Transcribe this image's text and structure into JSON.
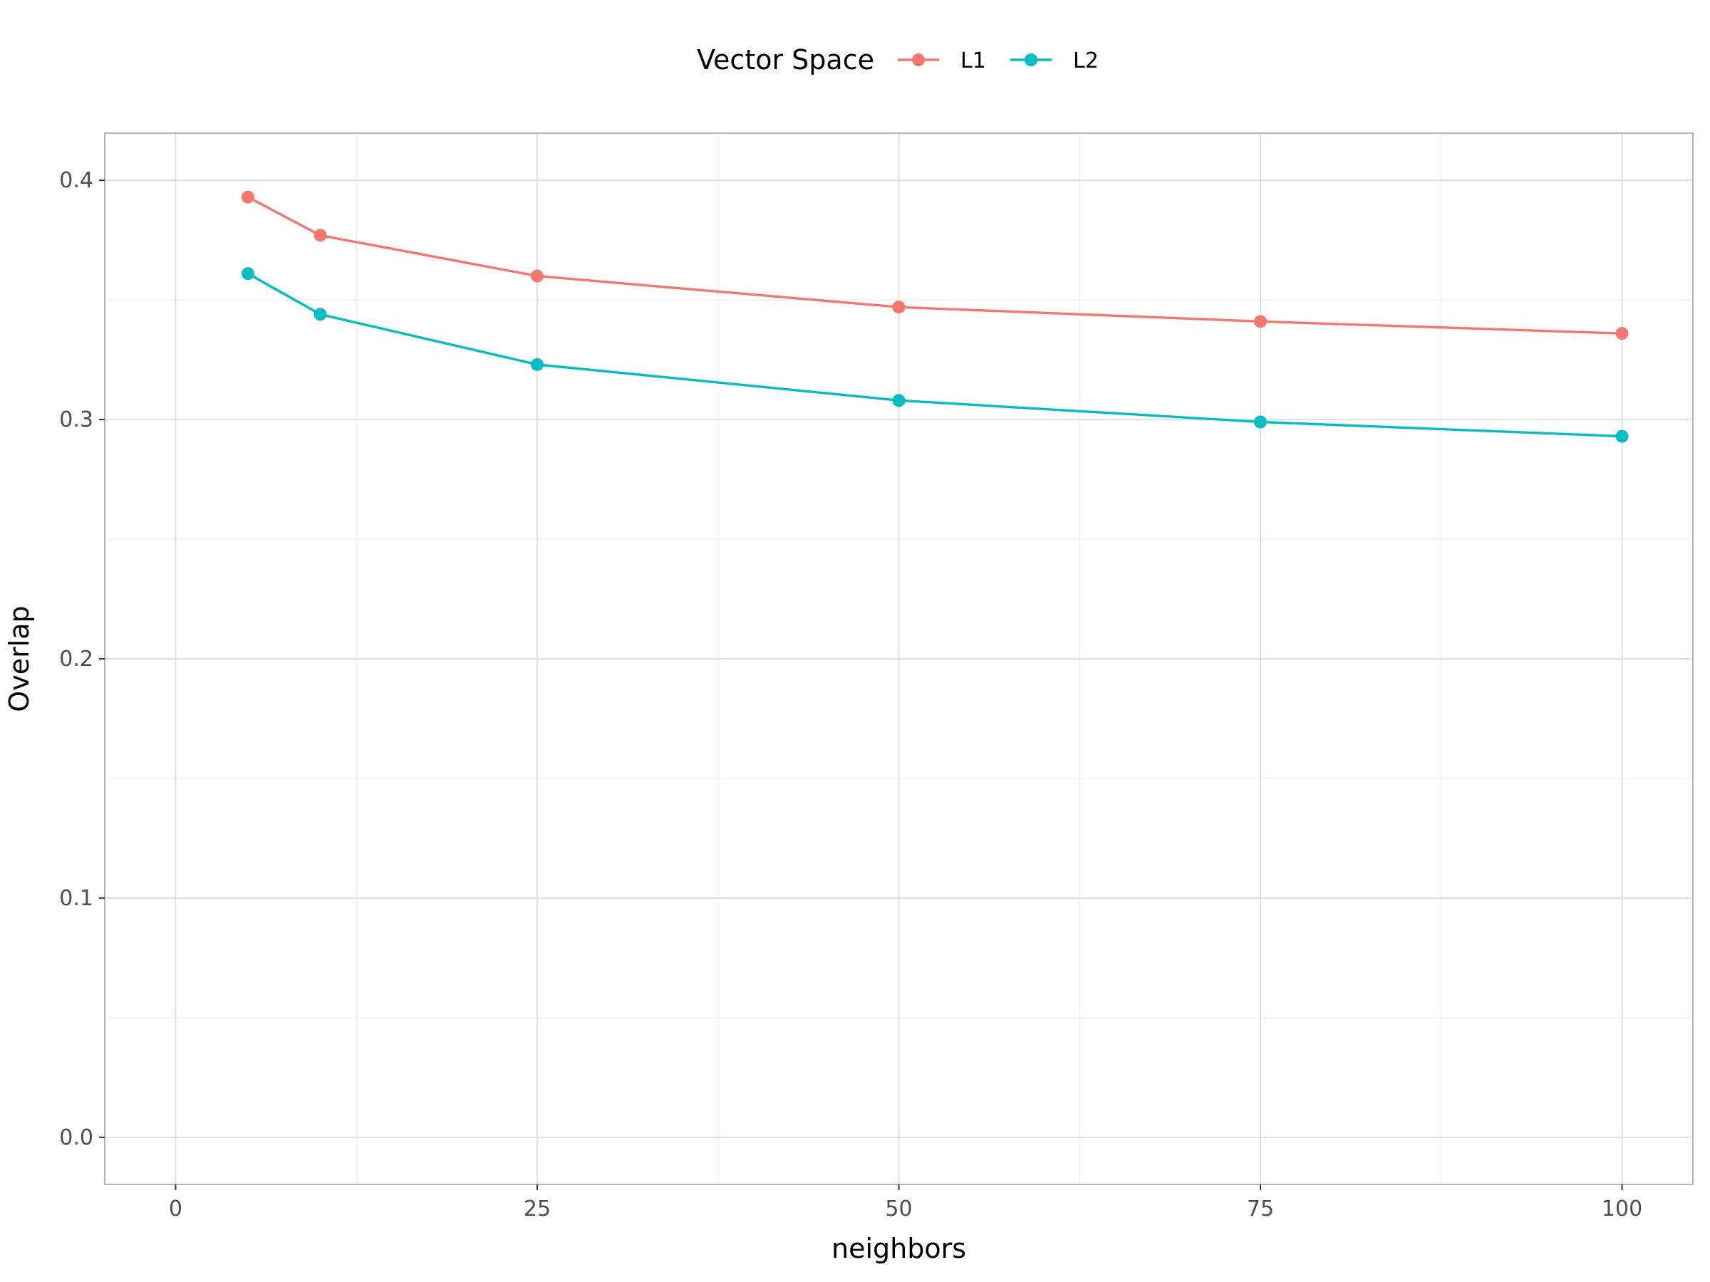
{
  "chart_data": {
    "type": "line",
    "title": "",
    "xlabel": "neighbors",
    "ylabel": "Overlap",
    "xlim": [
      -4.9,
      104.9
    ],
    "ylim": [
      -0.0197,
      0.4197
    ],
    "x_ticks": [
      0,
      25,
      50,
      75,
      100
    ],
    "y_ticks": [
      0.0,
      0.1,
      0.2,
      0.3,
      0.4
    ],
    "x_tick_labels": [
      "0",
      "25",
      "50",
      "75",
      "100"
    ],
    "y_tick_labels": [
      "0.0",
      "0.1",
      "0.2",
      "0.3",
      "0.4"
    ],
    "grid": true,
    "legend": {
      "title": "Vector Space",
      "position": "top"
    },
    "x": [
      5,
      10,
      25,
      50,
      75,
      100
    ],
    "series": [
      {
        "name": "L1",
        "color": "#F8766D",
        "values": [
          0.393,
          0.377,
          0.36,
          0.347,
          0.341,
          0.336
        ]
      },
      {
        "name": "L2",
        "color": "#00BFC4",
        "values": [
          0.361,
          0.344,
          0.323,
          0.308,
          0.299,
          0.293
        ]
      }
    ]
  }
}
